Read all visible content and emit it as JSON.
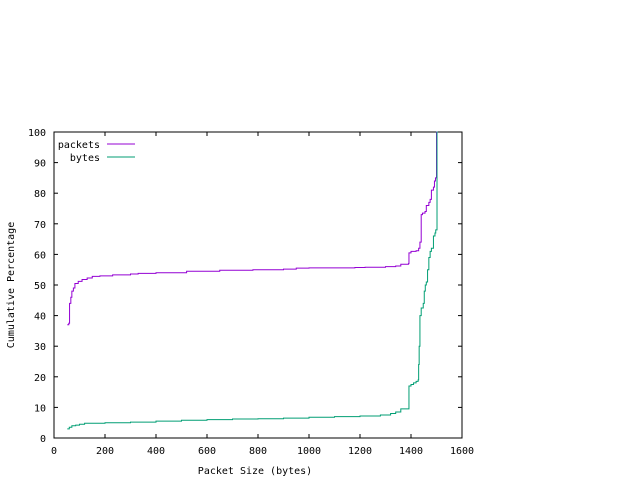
{
  "chart_data": {
    "type": "line",
    "title": "",
    "xlabel": "Packet Size (bytes)",
    "ylabel": "Cumulative Percentage",
    "xlim": [
      0,
      1600
    ],
    "ylim": [
      0,
      100
    ],
    "xticks": [
      0,
      200,
      400,
      600,
      800,
      1000,
      1200,
      1400,
      1600
    ],
    "yticks": [
      0,
      10,
      20,
      30,
      40,
      50,
      60,
      70,
      80,
      90,
      100
    ],
    "grid": false,
    "legend_position": "top-left",
    "series": [
      {
        "name": "packets",
        "color": "#9400d3",
        "step": true,
        "points": [
          [
            52,
            37
          ],
          [
            58,
            37.5
          ],
          [
            61,
            44
          ],
          [
            66,
            46
          ],
          [
            70,
            48
          ],
          [
            76,
            49
          ],
          [
            82,
            50.5
          ],
          [
            95,
            51.2
          ],
          [
            110,
            51.8
          ],
          [
            130,
            52.3
          ],
          [
            150,
            52.8
          ],
          [
            180,
            53
          ],
          [
            230,
            53.3
          ],
          [
            300,
            53.6
          ],
          [
            330,
            53.8
          ],
          [
            400,
            54
          ],
          [
            520,
            54.5
          ],
          [
            650,
            54.8
          ],
          [
            780,
            55
          ],
          [
            900,
            55.2
          ],
          [
            950,
            55.5
          ],
          [
            1000,
            55.6
          ],
          [
            1100,
            55.6
          ],
          [
            1180,
            55.7
          ],
          [
            1220,
            55.8
          ],
          [
            1300,
            56
          ],
          [
            1340,
            56.2
          ],
          [
            1360,
            56.8
          ],
          [
            1390,
            57
          ],
          [
            1392,
            60.5
          ],
          [
            1400,
            61
          ],
          [
            1420,
            61.2
          ],
          [
            1430,
            62
          ],
          [
            1435,
            64
          ],
          [
            1440,
            73
          ],
          [
            1445,
            73.5
          ],
          [
            1455,
            74
          ],
          [
            1460,
            76
          ],
          [
            1470,
            77
          ],
          [
            1475,
            78
          ],
          [
            1480,
            81
          ],
          [
            1488,
            82
          ],
          [
            1492,
            84
          ],
          [
            1496,
            85
          ],
          [
            1500,
            85
          ],
          [
            1500,
            100
          ],
          [
            1505,
            100
          ]
        ]
      },
      {
        "name": "bytes",
        "color": "#009e73",
        "step": true,
        "points": [
          [
            52,
            3
          ],
          [
            60,
            3.5
          ],
          [
            70,
            4
          ],
          [
            85,
            4.2
          ],
          [
            100,
            4.5
          ],
          [
            120,
            4.8
          ],
          [
            200,
            5
          ],
          [
            300,
            5.2
          ],
          [
            400,
            5.5
          ],
          [
            500,
            5.8
          ],
          [
            600,
            6
          ],
          [
            700,
            6.2
          ],
          [
            800,
            6.3
          ],
          [
            900,
            6.5
          ],
          [
            1000,
            6.8
          ],
          [
            1100,
            7
          ],
          [
            1200,
            7.2
          ],
          [
            1280,
            7.5
          ],
          [
            1320,
            8
          ],
          [
            1340,
            8.5
          ],
          [
            1360,
            9.5
          ],
          [
            1390,
            9.5
          ],
          [
            1392,
            17
          ],
          [
            1400,
            17.5
          ],
          [
            1410,
            18
          ],
          [
            1420,
            18.5
          ],
          [
            1428,
            19
          ],
          [
            1430,
            24
          ],
          [
            1432,
            30
          ],
          [
            1435,
            40
          ],
          [
            1440,
            42.5
          ],
          [
            1448,
            44
          ],
          [
            1452,
            48
          ],
          [
            1456,
            50
          ],
          [
            1460,
            51
          ],
          [
            1465,
            55
          ],
          [
            1470,
            59
          ],
          [
            1475,
            61
          ],
          [
            1480,
            62
          ],
          [
            1488,
            66
          ],
          [
            1494,
            67
          ],
          [
            1497,
            68
          ],
          [
            1500,
            68
          ],
          [
            1502,
            100
          ],
          [
            1505,
            100
          ]
        ]
      }
    ]
  }
}
